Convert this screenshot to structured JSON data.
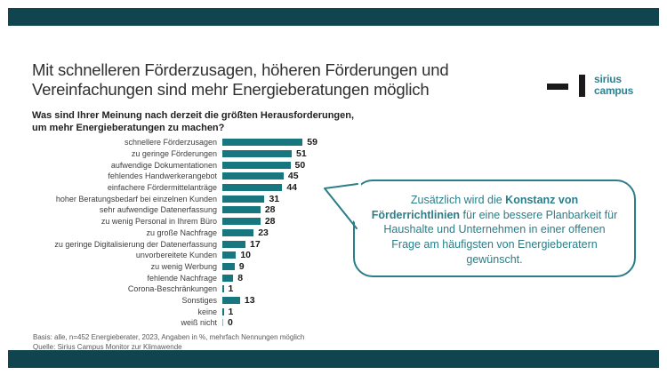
{
  "slide": {
    "title_line1": "Mit schnelleren Förderzusagen, höheren Förderungen und",
    "title_line2": "Vereinfachungen sind mehr Energieberatungen möglich",
    "question_line1": "Was sind Ihrer Meinung nach derzeit die größten Herausforderungen,",
    "question_line2": "um mehr Energieberatungen zu machen?"
  },
  "logo": {
    "line1": "sirius",
    "line2": "campus"
  },
  "chart_data": {
    "type": "bar",
    "orientation": "horizontal",
    "title": "Was sind Ihrer Meinung nach derzeit die größten Herausforderungen, um mehr Energieberatungen zu machen?",
    "unit": "%",
    "xlim": [
      0,
      65
    ],
    "bar_color": "#17767e",
    "categories": [
      "schnellere Förderzusagen",
      "zu geringe Förderungen",
      "aufwendige Dokumentationen",
      "fehlendes Handwerkerangebot",
      "einfachere Fördermittelanträge",
      "hoher Beratungsbedarf bei einzelnen Kunden",
      "sehr aufwendige Datenerfassung",
      "zu wenig Personal in Ihrem Büro",
      "zu große Nachfrage",
      "zu geringe Digitalisierung der Datenerfassung",
      "unvorbereitete Kunden",
      "zu wenig Werbung",
      "fehlende Nachfrage",
      "Corona-Beschränkungen",
      "Sonstiges",
      "keine",
      "weiß nicht"
    ],
    "values": [
      59,
      51,
      50,
      45,
      44,
      31,
      28,
      28,
      23,
      17,
      10,
      9,
      8,
      1,
      13,
      1,
      0
    ]
  },
  "callout": {
    "segments": [
      {
        "text": "Zusätzlich wird die ",
        "bold": false
      },
      {
        "text": "Konstanz von Förderrichtlinien",
        "bold": true
      },
      {
        "text": " für eine bessere Planbarkeit für Haushalte und Unternehmen in einer offenen Frage am häufigsten von Energieberatern gewünscht.",
        "bold": false
      }
    ]
  },
  "footnote": {
    "line1": "Basis: alle, n=452 Energieberater, 2023, Angaben in %, mehrfach Nennungen möglich",
    "line2": "Quelle: Sirius Campus Monitor zur Klimawende"
  },
  "colors": {
    "accent_teal": "#17767e",
    "callout_teal": "#2b7e88",
    "band_dark_teal": "#10454f",
    "logo_black": "#1a1a1a"
  }
}
